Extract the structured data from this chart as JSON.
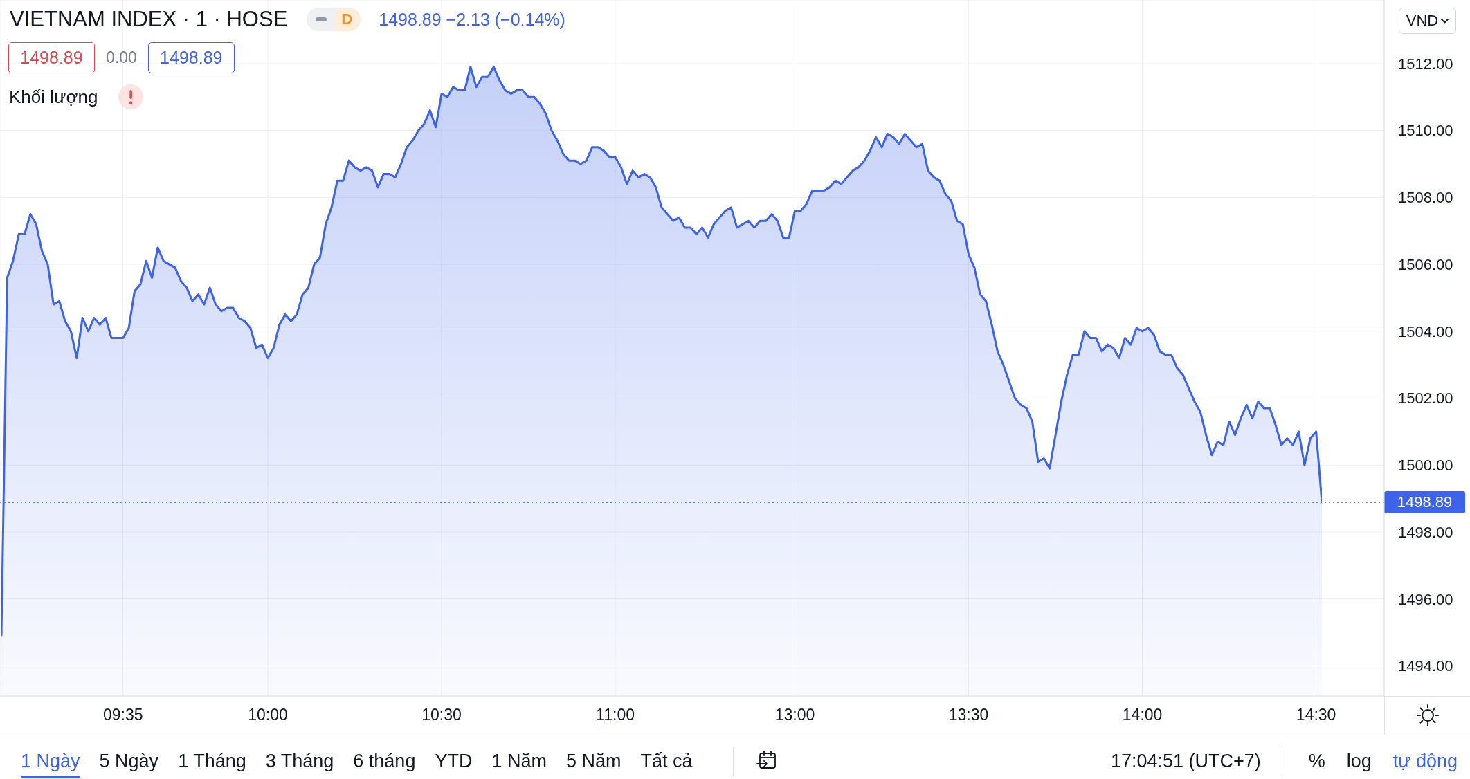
{
  "chart_data": {
    "type": "area",
    "title": "VIETNAM INDEX · 1 · HOSE",
    "subtitle": "1498.89 −2.13 (−0.14%)",
    "color": "#3d63e9",
    "categories": [
      null,
      null,
      null,
      null,
      null,
      null,
      null,
      null,
      null,
      null,
      null,
      null,
      null,
      null,
      null,
      null,
      null,
      null,
      null,
      null,
      null,
      "09:35",
      null,
      null,
      null,
      null,
      null,
      null,
      null,
      null,
      null,
      null,
      null,
      null,
      null,
      null,
      null,
      null,
      null,
      null,
      null,
      null,
      null,
      null,
      null,
      null,
      "10:00",
      null,
      null,
      null,
      null,
      null,
      null,
      null,
      null,
      null,
      null,
      null,
      null,
      null,
      null,
      null,
      null,
      null,
      null,
      null,
      null,
      null,
      null,
      null,
      null,
      null,
      null,
      null,
      null,
      null,
      "10:30",
      null,
      null,
      null,
      null,
      null,
      null,
      null,
      null,
      null,
      null,
      null,
      null,
      null,
      null,
      null,
      null,
      null,
      null,
      null,
      null,
      null,
      null,
      null,
      null,
      null,
      null,
      null,
      null,
      null,
      "11:00",
      null,
      null,
      null,
      null,
      null,
      null,
      null,
      null,
      null,
      null,
      null,
      null,
      null,
      null,
      null,
      null,
      null,
      null,
      null,
      null,
      null,
      null,
      null,
      null,
      null,
      null,
      null,
      null,
      null,
      null,
      "13:00",
      null,
      null,
      null,
      null,
      null,
      null,
      null,
      null,
      null,
      null,
      null,
      null,
      null,
      null,
      null,
      null,
      null,
      null,
      null,
      null,
      null,
      null,
      null,
      null,
      null,
      null,
      null,
      null,
      null,
      "13:30",
      null,
      null,
      null,
      null,
      null,
      null,
      null,
      null,
      null,
      null,
      null,
      null,
      null,
      null,
      null,
      null,
      null,
      null,
      null,
      null,
      null,
      null,
      null,
      null,
      null,
      null,
      null,
      null,
      null,
      "14:00",
      null,
      null,
      null,
      null,
      null,
      null,
      null,
      null,
      null,
      null,
      null,
      null,
      null,
      null,
      null,
      null,
      null,
      null,
      null,
      null,
      null,
      null,
      null,
      null,
      null,
      null,
      null,
      null,
      null,
      "14:30",
      null
    ],
    "values": [
      1494.9,
      1505.6,
      1506.1,
      1506.9,
      1506.9,
      1507.5,
      1507.2,
      1506.4,
      1506.0,
      1504.8,
      1504.9,
      1504.3,
      1504.0,
      1503.2,
      1504.4,
      1504.0,
      1504.4,
      1504.2,
      1504.4,
      1503.8,
      1503.8,
      1503.8,
      1504.1,
      1505.2,
      1505.4,
      1506.1,
      1505.6,
      1506.5,
      1506.1,
      1506.0,
      1505.9,
      1505.5,
      1505.3,
      1504.9,
      1505.1,
      1504.8,
      1505.3,
      1504.8,
      1504.6,
      1504.7,
      1504.7,
      1504.4,
      1504.3,
      1504.1,
      1503.5,
      1503.6,
      1503.2,
      1503.5,
      1504.2,
      1504.5,
      1504.3,
      1504.5,
      1505.1,
      1505.3,
      1506.0,
      1506.2,
      1507.2,
      1507.7,
      1508.5,
      1508.5,
      1509.1,
      1508.9,
      1508.8,
      1508.9,
      1508.8,
      1508.3,
      1508.7,
      1508.7,
      1508.6,
      1509.0,
      1509.5,
      1509.7,
      1510.0,
      1510.2,
      1510.6,
      1510.1,
      1511.1,
      1511.0,
      1511.3,
      1511.2,
      1511.2,
      1511.9,
      1511.3,
      1511.6,
      1511.6,
      1511.9,
      1511.5,
      1511.2,
      1511.1,
      1511.2,
      1511.2,
      1511.0,
      1511.0,
      1510.8,
      1510.5,
      1510.0,
      1509.7,
      1509.3,
      1509.1,
      1509.1,
      1509.0,
      1509.1,
      1509.5,
      1509.5,
      1509.4,
      1509.2,
      1509.2,
      1508.9,
      1508.4,
      1508.8,
      1508.6,
      1508.7,
      1508.6,
      1508.3,
      1507.7,
      1507.5,
      1507.3,
      1507.4,
      1507.1,
      1507.1,
      1506.9,
      1507.1,
      1506.8,
      1507.2,
      1507.4,
      1507.6,
      1507.7,
      1507.1,
      1507.2,
      1507.3,
      1507.1,
      1507.3,
      1507.3,
      1507.5,
      1507.3,
      1506.8,
      1506.8,
      1507.6,
      1507.6,
      1507.8,
      1508.2,
      1508.2,
      1508.2,
      1508.3,
      1508.5,
      1508.4,
      1508.6,
      1508.8,
      1508.9,
      1509.1,
      1509.4,
      1509.8,
      1509.5,
      1509.9,
      1509.8,
      1509.6,
      1509.9,
      1509.7,
      1509.5,
      1509.6,
      1508.8,
      1508.6,
      1508.5,
      1508.1,
      1507.9,
      1507.3,
      1507.2,
      1506.3,
      1505.9,
      1505.1,
      1504.9,
      1504.2,
      1503.4,
      1503.0,
      1502.5,
      1502.0,
      1501.8,
      1501.7,
      1501.3,
      1500.1,
      1500.2,
      1499.9,
      1500.9,
      1501.9,
      1502.7,
      1503.3,
      1503.3,
      1504.0,
      1503.8,
      1503.8,
      1503.4,
      1503.6,
      1503.5,
      1503.2,
      1503.8,
      1503.6,
      1504.1,
      1504.0,
      1504.1,
      1503.9,
      1503.4,
      1503.3,
      1503.3,
      1502.9,
      1502.7,
      1502.3,
      1501.9,
      1501.6,
      1500.9,
      1500.3,
      1500.7,
      1500.6,
      1501.3,
      1500.9,
      1501.4,
      1501.8,
      1501.4,
      1501.9,
      1501.7,
      1501.7,
      1501.2,
      1500.6,
      1500.8,
      1500.6,
      1501.0,
      1500.0,
      1500.8,
      1501.0,
      1498.89
    ],
    "ylim": [
      1493.1,
      1513.9
    ],
    "yticks": [
      {
        "value": 1494,
        "label": "1494.00"
      },
      {
        "value": 1496,
        "label": "1496.00"
      },
      {
        "value": 1498,
        "label": "1498.00"
      },
      {
        "value": 1500,
        "label": "1500.00"
      },
      {
        "value": 1502,
        "label": "1502.00"
      },
      {
        "value": 1504,
        "label": "1504.00"
      },
      {
        "value": 1506,
        "label": "1506.00"
      },
      {
        "value": 1508,
        "label": "1508.00"
      },
      {
        "value": 1510,
        "label": "1510.00"
      },
      {
        "value": 1512,
        "label": "1512.00"
      }
    ],
    "grid": true,
    "ref_lines": [
      {
        "axis": "y",
        "value": 1498.89,
        "label": "1498.89",
        "color": "#3d63e9",
        "line_style": "dotted"
      }
    ],
    "annotations": [
      "D",
      "1498.89",
      "0.00",
      "1498.89",
      "Khối lượng",
      "VND",
      "1 Ngày",
      "5 Ngày",
      "1 Tháng",
      "3 Tháng",
      "6 tháng",
      "YTD",
      "1 Năm",
      "5 Năm",
      "Tất cả",
      "17:04:51 (UTC+7)",
      "%",
      "log",
      "tự động"
    ]
  }
}
